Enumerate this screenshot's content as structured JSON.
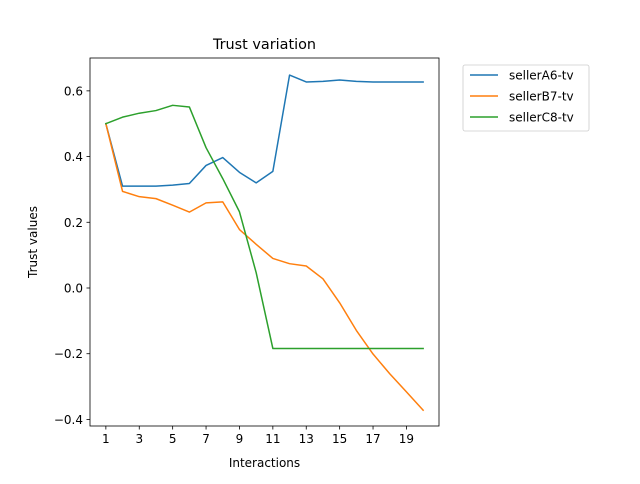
{
  "chart_data": {
    "type": "line",
    "title": "Trust variation",
    "xlabel": "Interactions",
    "ylabel": "Trust values",
    "xlim": [
      0.05,
      20.95
    ],
    "ylim": [
      -0.42,
      0.7
    ],
    "xticks": [
      1,
      3,
      5,
      7,
      9,
      11,
      13,
      15,
      17,
      19
    ],
    "yticks": [
      -0.4,
      -0.2,
      0.0,
      0.2,
      0.4,
      0.6
    ],
    "ytick_labels": [
      "−0.4",
      "−0.2",
      "0.0",
      "0.2",
      "0.4",
      "0.6"
    ],
    "grid": false,
    "legend_position": "outside-top-right",
    "x": [
      1,
      2,
      3,
      4,
      5,
      6,
      7,
      8,
      9,
      10,
      11,
      12,
      13,
      14,
      15,
      16,
      17,
      18,
      19,
      20
    ],
    "series": [
      {
        "name": "sellerA6-tv",
        "color": "#1f77b4",
        "values": [
          0.5,
          0.31,
          0.31,
          0.31,
          0.313,
          0.318,
          0.373,
          0.397,
          0.352,
          0.32,
          0.355,
          0.648,
          0.627,
          0.629,
          0.633,
          0.629,
          0.627,
          0.627,
          0.627,
          0.627
        ]
      },
      {
        "name": "sellerB7-tv",
        "color": "#ff7f0e",
        "values": [
          0.5,
          0.294,
          0.278,
          0.272,
          0.252,
          0.231,
          0.259,
          0.262,
          0.178,
          0.133,
          0.09,
          0.074,
          0.067,
          0.028,
          -0.045,
          -0.129,
          -0.201,
          -0.261,
          -0.316,
          -0.372
        ]
      },
      {
        "name": "sellerC8-tv",
        "color": "#2ca02c",
        "values": [
          0.5,
          0.52,
          0.532,
          0.54,
          0.556,
          0.551,
          0.427,
          0.333,
          0.232,
          0.047,
          -0.184,
          -0.184,
          -0.184,
          -0.184,
          -0.184,
          -0.184,
          -0.184,
          -0.184,
          -0.184,
          -0.184
        ]
      }
    ]
  }
}
